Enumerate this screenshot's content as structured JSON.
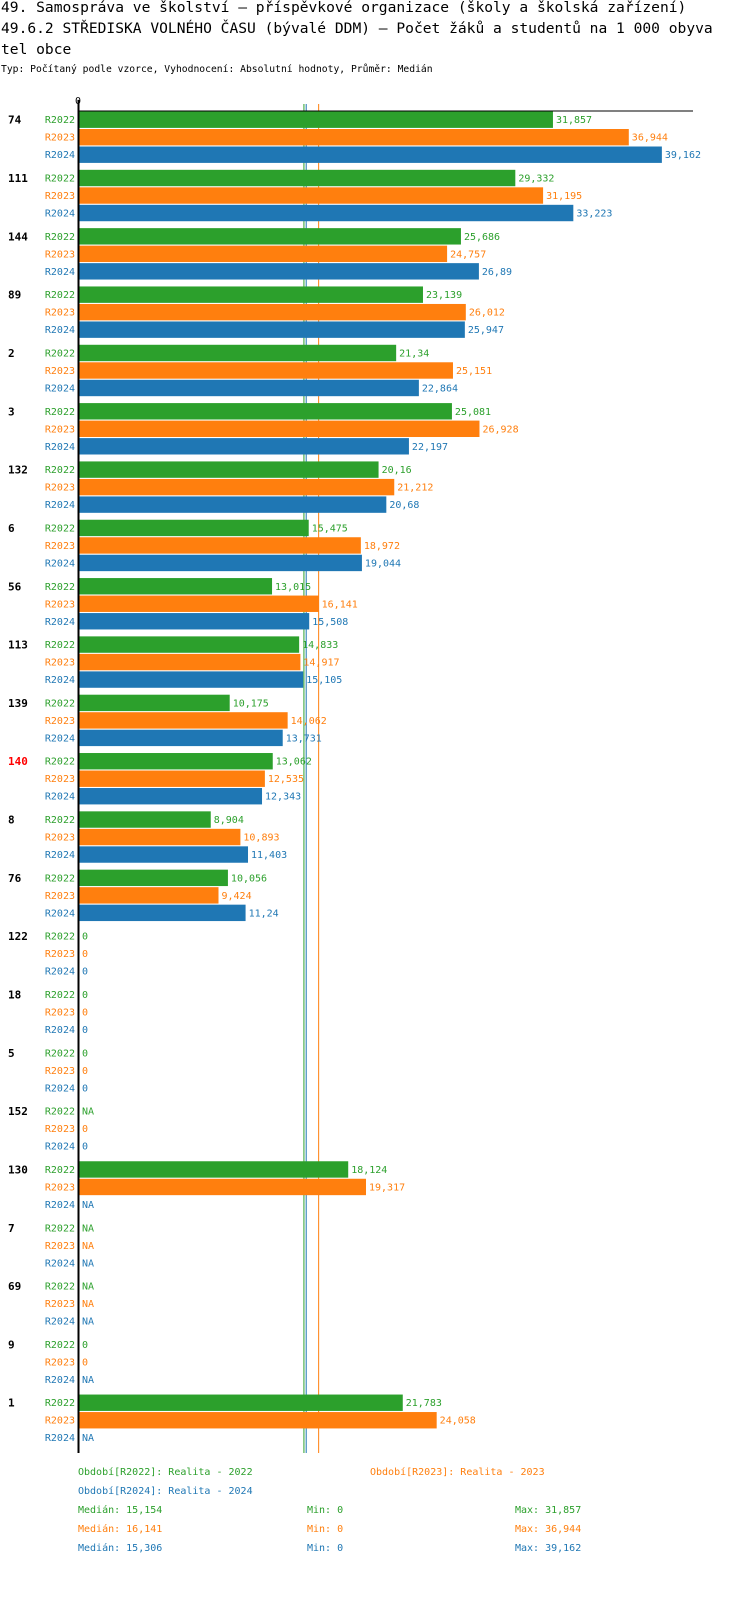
{
  "header": {
    "title_line1": "49. Samospráva ve školství – příspěvkové organizace (školy a školská zařízení)",
    "title_line2": "49.6.2 STŘEDISKA VOLNÉHO ČASU (bývalé DDM) – Počet žáků a studentů na 1 000 obyvatel obce",
    "subtitle": "Typ: Počítaný podle vzorce, Vyhodnocení: Absolutní hodnoty, Průměr: Medián"
  },
  "chart_data": {
    "type": "bar",
    "orientation": "horizontal",
    "xlim": [
      0,
      41.25
    ],
    "zero_tick_label": "0",
    "highlight_index": 11,
    "highlight_color": "#ff0000",
    "categories": [
      "74",
      "111",
      "144",
      "89",
      "2",
      "3",
      "132",
      "6",
      "56",
      "113",
      "139",
      "140",
      "8",
      "76",
      "122",
      "18",
      "5",
      "152",
      "130",
      "7",
      "69",
      "9",
      "1"
    ],
    "series": [
      {
        "name": "R2022",
        "color": "#2ca02c",
        "median": 15.154,
        "values": [
          31.857,
          29.332,
          25.686,
          23.139,
          21.34,
          25.081,
          20.16,
          15.475,
          13.015,
          14.833,
          10.175,
          13.062,
          8.904,
          10.056,
          0,
          0,
          0,
          null,
          18.124,
          null,
          null,
          0,
          21.783
        ],
        "labels": [
          "31,857",
          "29,332",
          "25,686",
          "23,139",
          "21,34",
          "25,081",
          "20,16",
          "15,475",
          "13,015",
          "14,833",
          "10,175",
          "13,062",
          "8,904",
          "10,056",
          "0",
          "0",
          "0",
          "NA",
          "18,124",
          "NA",
          "NA",
          "0",
          "21,783"
        ]
      },
      {
        "name": "R2023",
        "color": "#ff7f0e",
        "median": 16.141,
        "values": [
          36.944,
          31.195,
          24.757,
          26.012,
          25.151,
          26.928,
          21.212,
          18.972,
          16.141,
          14.917,
          14.062,
          12.535,
          10.893,
          9.424,
          0,
          0,
          0,
          0,
          19.317,
          null,
          null,
          0,
          24.058
        ],
        "labels": [
          "36,944",
          "31,195",
          "24,757",
          "26,012",
          "25,151",
          "26,928",
          "21,212",
          "18,972",
          "16,141",
          "14,917",
          "14,062",
          "12,535",
          "10,893",
          "9,424",
          "0",
          "0",
          "0",
          "0",
          "19,317",
          "NA",
          "NA",
          "0",
          "24,058"
        ]
      },
      {
        "name": "R2024",
        "color": "#1f77b4",
        "median": 15.306,
        "values": [
          39.162,
          33.223,
          26.89,
          25.947,
          22.864,
          22.197,
          20.68,
          19.044,
          15.508,
          15.105,
          13.731,
          12.343,
          11.403,
          11.24,
          0,
          0,
          0,
          0,
          null,
          null,
          null,
          null,
          null
        ],
        "labels": [
          "39,162",
          "33,223",
          "26,89",
          "25,947",
          "22,864",
          "22,197",
          "20,68",
          "19,044",
          "15,508",
          "15,105",
          "13,731",
          "12,343",
          "11,403",
          "11,24",
          "0",
          "0",
          "0",
          "0",
          "NA",
          "NA",
          "NA",
          "NA",
          "NA"
        ]
      }
    ]
  },
  "footer": {
    "legend": [
      {
        "text": "Období[R2022]: Realita - 2022",
        "color": "#2ca02c"
      },
      {
        "text": "Období[R2023]: Realita - 2023",
        "color": "#ff7f0e"
      },
      {
        "text": "Období[R2024]: Realita - 2024",
        "color": "#1f77b4"
      }
    ],
    "stats": [
      {
        "median": "Medián: 15,154",
        "min": "Min: 0",
        "max": "Max: 31,857"
      },
      {
        "median": "Medián: 16,141",
        "min": "Min: 0",
        "max": "Max: 36,944"
      },
      {
        "median": "Medián: 15,306",
        "min": "Min: 0",
        "max": "Max: 39,162"
      }
    ]
  }
}
